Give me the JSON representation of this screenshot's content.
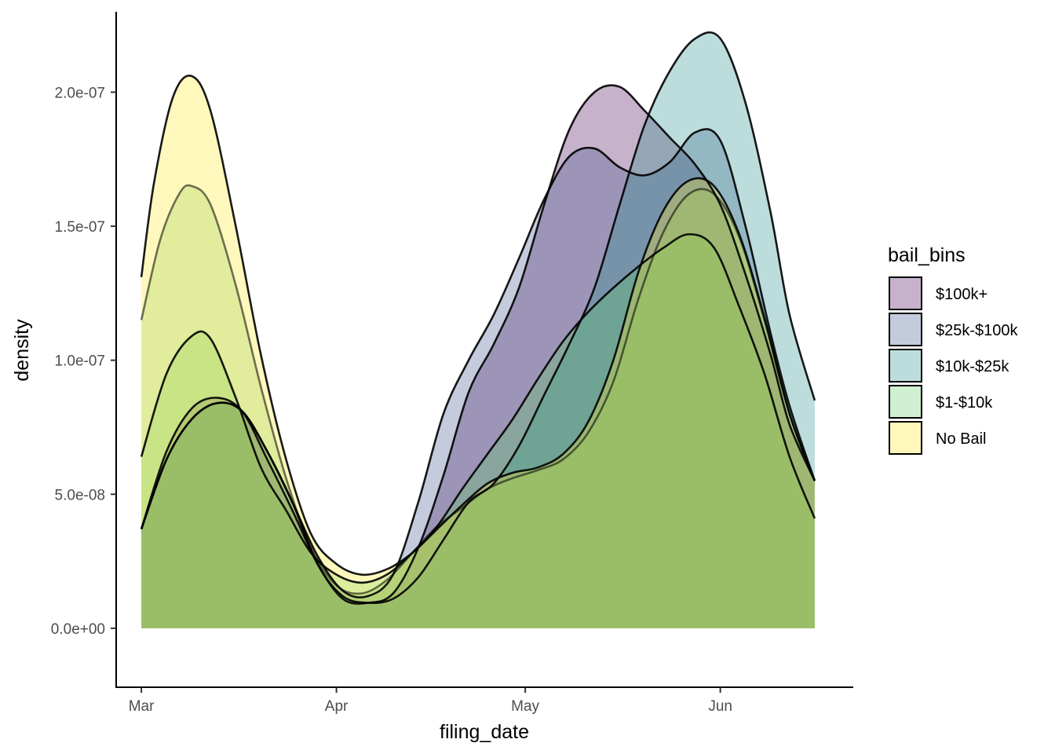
{
  "chart_data": {
    "type": "area",
    "chart_kind": "density",
    "xlabel": "filing_date",
    "ylabel": "density",
    "x_axis_type": "date",
    "x_ticks": [
      "Mar",
      "Apr",
      "May",
      "Jun"
    ],
    "x_tick_dates": [
      "2020-03-01",
      "2020-04-01",
      "2020-05-01",
      "2020-06-01"
    ],
    "xlim": [
      "2020-02-26",
      "2020-06-22"
    ],
    "x_data_range": [
      "2020-03-01",
      "2020-06-16"
    ],
    "ylim": [
      -2.2e-08,
      2.3e-07
    ],
    "y_ticks": [
      0,
      5e-08,
      1e-07,
      1.5e-07,
      2e-07
    ],
    "y_tick_labels": [
      "0.0e+00",
      "5.0e-08",
      "1.0e-07",
      "1.5e-07",
      "2.0e-07"
    ],
    "grid": false,
    "legend": {
      "title": "bail_bins",
      "position": "right"
    },
    "fill_alpha": 0.3,
    "outline_color": "#000000",
    "series": [
      {
        "name": "$100k+",
        "color": "#440154",
        "points": [
          [
            "2020-03-01",
            3.7e-08
          ],
          [
            "2020-03-05",
            6.6e-08
          ],
          [
            "2020-03-09",
            8.2e-08
          ],
          [
            "2020-03-13",
            8.6e-08
          ],
          [
            "2020-03-17",
            8.1e-08
          ],
          [
            "2020-03-21",
            6.3e-08
          ],
          [
            "2020-03-25",
            4.4e-08
          ],
          [
            "2020-03-29",
            2.4e-08
          ],
          [
            "2020-04-02",
            1.1e-08
          ],
          [
            "2020-04-06",
            9.5e-09
          ],
          [
            "2020-04-10",
            1.3e-08
          ],
          [
            "2020-04-14",
            3e-08
          ],
          [
            "2020-04-18",
            5.7e-08
          ],
          [
            "2020-04-22",
            8.8e-08
          ],
          [
            "2020-04-26",
            1.06e-07
          ],
          [
            "2020-04-30",
            1.27e-07
          ],
          [
            "2020-05-04",
            1.58e-07
          ],
          [
            "2020-05-08",
            1.86e-07
          ],
          [
            "2020-05-12",
            2e-07
          ],
          [
            "2020-05-16",
            2.02e-07
          ],
          [
            "2020-05-20",
            1.93e-07
          ],
          [
            "2020-05-24",
            1.83e-07
          ],
          [
            "2020-05-28",
            1.73e-07
          ],
          [
            "2020-06-01",
            1.58e-07
          ],
          [
            "2020-06-05",
            1.32e-07
          ],
          [
            "2020-06-09",
            1.02e-07
          ],
          [
            "2020-06-12",
            7.6e-08
          ],
          [
            "2020-06-16",
            5.5e-08
          ]
        ]
      },
      {
        "name": "$25k-$100k",
        "color": "#3b528b",
        "points": [
          [
            "2020-03-01",
            3.7e-08
          ],
          [
            "2020-03-05",
            6.3e-08
          ],
          [
            "2020-03-09",
            7.8e-08
          ],
          [
            "2020-03-13",
            8.4e-08
          ],
          [
            "2020-03-17",
            8.1e-08
          ],
          [
            "2020-03-21",
            6.6e-08
          ],
          [
            "2020-03-25",
            4.7e-08
          ],
          [
            "2020-03-29",
            2.7e-08
          ],
          [
            "2020-04-02",
            1.4e-08
          ],
          [
            "2020-04-06",
            1.2e-08
          ],
          [
            "2020-04-10",
            2e-08
          ],
          [
            "2020-04-14",
            4.7e-08
          ],
          [
            "2020-04-18",
            8e-08
          ],
          [
            "2020-04-22",
            1e-07
          ],
          [
            "2020-04-26",
            1.17e-07
          ],
          [
            "2020-04-30",
            1.38e-07
          ],
          [
            "2020-05-04",
            1.6e-07
          ],
          [
            "2020-05-08",
            1.76e-07
          ],
          [
            "2020-05-12",
            1.79e-07
          ],
          [
            "2020-05-16",
            1.72e-07
          ],
          [
            "2020-05-20",
            1.69e-07
          ],
          [
            "2020-05-24",
            1.74e-07
          ],
          [
            "2020-05-28",
            1.85e-07
          ],
          [
            "2020-06-01",
            1.82e-07
          ],
          [
            "2020-06-05",
            1.5e-07
          ],
          [
            "2020-06-09",
            1.1e-07
          ],
          [
            "2020-06-12",
            8.3e-08
          ],
          [
            "2020-06-16",
            5.5e-08
          ]
        ]
      },
      {
        "name": "$10k-$25k",
        "color": "#21908c",
        "points": [
          [
            "2020-03-01",
            3.7e-08
          ],
          [
            "2020-03-05",
            6.3e-08
          ],
          [
            "2020-03-09",
            7.8e-08
          ],
          [
            "2020-03-13",
            8.4e-08
          ],
          [
            "2020-03-17",
            8.1e-08
          ],
          [
            "2020-03-21",
            6.6e-08
          ],
          [
            "2020-03-25",
            4.7e-08
          ],
          [
            "2020-03-29",
            2.4e-08
          ],
          [
            "2020-04-02",
            1.2e-08
          ],
          [
            "2020-04-06",
            9.5e-09
          ],
          [
            "2020-04-10",
            1.1e-08
          ],
          [
            "2020-04-14",
            1.9e-08
          ],
          [
            "2020-04-18",
            3.3e-08
          ],
          [
            "2020-04-22",
            4.7e-08
          ],
          [
            "2020-04-26",
            5.4e-08
          ],
          [
            "2020-04-30",
            6.8e-08
          ],
          [
            "2020-05-04",
            8.7e-08
          ],
          [
            "2020-05-08",
            1.06e-07
          ],
          [
            "2020-05-12",
            1.27e-07
          ],
          [
            "2020-05-16",
            1.58e-07
          ],
          [
            "2020-05-20",
            1.88e-07
          ],
          [
            "2020-05-24",
            2.08e-07
          ],
          [
            "2020-05-28",
            2.2e-07
          ],
          [
            "2020-06-01",
            2.2e-07
          ],
          [
            "2020-06-05",
            1.96e-07
          ],
          [
            "2020-06-09",
            1.55e-07
          ],
          [
            "2020-06-12",
            1.17e-07
          ],
          [
            "2020-06-16",
            8.5e-08
          ]
        ]
      },
      {
        "name": "$1-$10k",
        "color": "#5ec962",
        "points": [
          [
            "2020-03-01",
            6.4e-08
          ],
          [
            "2020-03-05",
            9.5e-08
          ],
          [
            "2020-03-09",
            1.09e-07
          ],
          [
            "2020-03-12",
            1.08e-07
          ],
          [
            "2020-03-16",
            8.6e-08
          ],
          [
            "2020-03-20",
            6e-08
          ],
          [
            "2020-03-24",
            4.4e-08
          ],
          [
            "2020-03-28",
            2.8e-08
          ],
          [
            "2020-04-01",
            2e-08
          ],
          [
            "2020-04-05",
            1.7e-08
          ],
          [
            "2020-04-09",
            2e-08
          ],
          [
            "2020-04-13",
            2.8e-08
          ],
          [
            "2020-04-17",
            3.8e-08
          ],
          [
            "2020-04-21",
            5.2e-08
          ],
          [
            "2020-04-25",
            6.5e-08
          ],
          [
            "2020-04-29",
            7.8e-08
          ],
          [
            "2020-05-03",
            9.3e-08
          ],
          [
            "2020-05-07",
            1.07e-07
          ],
          [
            "2020-05-11",
            1.18e-07
          ],
          [
            "2020-05-15",
            1.27e-07
          ],
          [
            "2020-05-19",
            1.35e-07
          ],
          [
            "2020-05-23",
            1.42e-07
          ],
          [
            "2020-05-27",
            1.47e-07
          ],
          [
            "2020-05-31",
            1.42e-07
          ],
          [
            "2020-06-04",
            1.2e-07
          ],
          [
            "2020-06-08",
            9.5e-08
          ],
          [
            "2020-06-12",
            6.4e-08
          ],
          [
            "2020-06-16",
            4.1e-08
          ]
        ]
      },
      {
        "name": "No Bail",
        "color": "#fde725",
        "points": [
          [
            "2020-03-01",
            1.31e-07
          ],
          [
            "2020-03-03",
            1.66e-07
          ],
          [
            "2020-03-06",
            1.98e-07
          ],
          [
            "2020-03-09",
            2.06e-07
          ],
          [
            "2020-03-12",
            1.93e-07
          ],
          [
            "2020-03-16",
            1.5e-07
          ],
          [
            "2020-03-20",
            1.02e-07
          ],
          [
            "2020-03-24",
            6.3e-08
          ],
          [
            "2020-03-28",
            3.5e-08
          ],
          [
            "2020-04-01",
            2.4e-08
          ],
          [
            "2020-04-05",
            2e-08
          ],
          [
            "2020-04-09",
            2.2e-08
          ],
          [
            "2020-04-13",
            2.8e-08
          ],
          [
            "2020-04-17",
            3.7e-08
          ],
          [
            "2020-04-21",
            4.6e-08
          ],
          [
            "2020-04-25",
            5.4e-08
          ],
          [
            "2020-04-29",
            5.8e-08
          ],
          [
            "2020-05-03",
            6e-08
          ],
          [
            "2020-05-07",
            6.5e-08
          ],
          [
            "2020-05-11",
            7.7e-08
          ],
          [
            "2020-05-15",
            1e-07
          ],
          [
            "2020-05-19",
            1.33e-07
          ],
          [
            "2020-05-23",
            1.56e-07
          ],
          [
            "2020-05-27",
            1.67e-07
          ],
          [
            "2020-05-31",
            1.65e-07
          ],
          [
            "2020-06-04",
            1.47e-07
          ],
          [
            "2020-06-08",
            1.16e-07
          ],
          [
            "2020-06-12",
            8e-08
          ],
          [
            "2020-06-16",
            5.5e-08
          ]
        ]
      },
      {
        "name": "",
        "color": "#a0d04f",
        "in_legend": false,
        "points": [
          [
            "2020-03-01",
            1.15e-07
          ],
          [
            "2020-03-04",
            1.45e-07
          ],
          [
            "2020-03-07",
            1.62e-07
          ],
          [
            "2020-03-09",
            1.65e-07
          ],
          [
            "2020-03-12",
            1.58e-07
          ],
          [
            "2020-03-16",
            1.28e-07
          ],
          [
            "2020-03-20",
            9e-08
          ],
          [
            "2020-03-24",
            5.6e-08
          ],
          [
            "2020-03-28",
            3e-08
          ],
          [
            "2020-04-01",
            1.6e-08
          ],
          [
            "2020-04-05",
            1.3e-08
          ],
          [
            "2020-04-09",
            1.8e-08
          ],
          [
            "2020-04-13",
            2.8e-08
          ],
          [
            "2020-04-17",
            3.8e-08
          ],
          [
            "2020-04-21",
            4.5e-08
          ],
          [
            "2020-04-25",
            5.2e-08
          ],
          [
            "2020-04-29",
            5.6e-08
          ],
          [
            "2020-05-03",
            5.9e-08
          ],
          [
            "2020-05-07",
            6.3e-08
          ],
          [
            "2020-05-11",
            7.3e-08
          ],
          [
            "2020-05-15",
            9.2e-08
          ],
          [
            "2020-05-19",
            1.23e-07
          ],
          [
            "2020-05-23",
            1.48e-07
          ],
          [
            "2020-05-27",
            1.62e-07
          ],
          [
            "2020-05-31",
            1.62e-07
          ],
          [
            "2020-06-04",
            1.46e-07
          ],
          [
            "2020-06-08",
            1.15e-07
          ],
          [
            "2020-06-12",
            8e-08
          ],
          [
            "2020-06-16",
            5.5e-08
          ]
        ]
      }
    ]
  }
}
